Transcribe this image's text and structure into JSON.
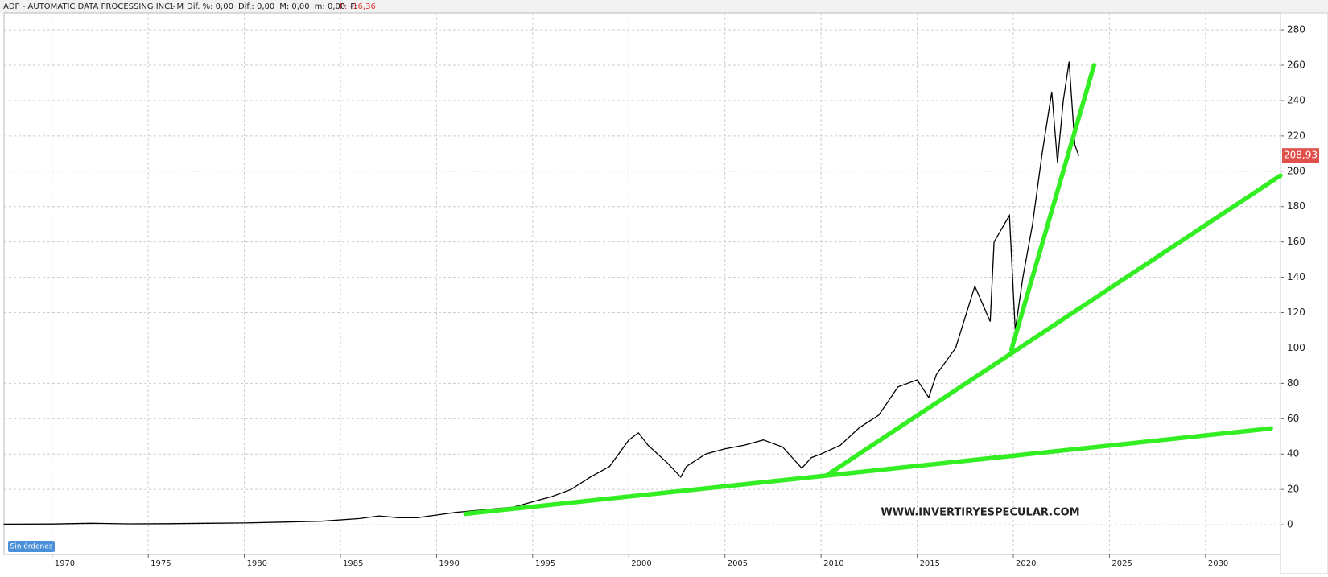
{
  "chart_data": {
    "type": "line",
    "header": {
      "title": "ADP - AUTOMATIC DATA PROCESSING INC -",
      "interval": "1 M",
      "stats": [
        "Dif. %: 0,00",
        "Dif.: 0,00",
        "M: 0,00",
        "m: 0,00",
        "F:"
      ],
      "change": "P: -16,36"
    },
    "watermark": "WWW.INVERTIRYESPECULAR.COM",
    "button": "Sin órdenes",
    "xlim": [
      1967.5,
      2033.9
    ],
    "ylim": [
      -16.8,
      289.6
    ],
    "xticks": [
      1970,
      1975,
      1980,
      1985,
      1990,
      1995,
      2000,
      2005,
      2010,
      2015,
      2020,
      2025,
      2030
    ],
    "yticks": [
      0,
      20,
      40,
      60,
      80,
      100,
      120,
      140,
      160,
      180,
      200,
      220,
      240,
      260,
      280
    ],
    "grid": true,
    "price_tag": {
      "value": 208.93,
      "label": "208,93",
      "color": "#e0504a"
    },
    "series": [
      {
        "color": "#000000",
        "width": 1.3,
        "x": [
          1967.5,
          1970,
          1972,
          1974,
          1976,
          1978,
          1980,
          1982,
          1984,
          1986,
          1987,
          1988,
          1989,
          1990,
          1991,
          1992,
          1993,
          1994,
          1995,
          1996,
          1997,
          1998,
          1999,
          2000,
          2000.5,
          2001,
          2002,
          2002.7,
          2003,
          2004,
          2005,
          2006,
          2007,
          2008,
          2009,
          2009.5,
          2010,
          2011,
          2012,
          2013,
          2014,
          2015,
          2015.6,
          2016,
          2017,
          2018,
          2018.8,
          2019,
          2019.8,
          2020.1,
          2020.5,
          2021,
          2021.5,
          2022,
          2022.3,
          2022.6,
          2022.9,
          2023.2,
          2023.4
        ],
        "values": [
          0.3,
          0.4,
          0.8,
          0.5,
          0.6,
          0.8,
          1,
          1.5,
          2,
          3.5,
          5,
          4,
          4,
          5.5,
          7,
          8,
          9,
          10,
          13,
          16,
          20,
          27,
          33,
          48,
          52,
          45,
          35,
          27,
          33,
          40,
          43,
          45,
          48,
          44,
          32,
          38,
          40,
          45,
          55,
          62,
          78,
          82,
          72,
          85,
          100,
          135,
          115,
          160,
          175,
          110,
          140,
          170,
          210,
          245,
          205,
          240,
          262,
          215,
          208.93
        ]
      },
      {
        "color": "#33ee22",
        "width": 5.5,
        "x": [
          1991.5,
          2033.4
        ],
        "values": [
          6.2,
          54.5
        ]
      },
      {
        "color": "#33ee22",
        "width": 5.5,
        "x": [
          2010.3,
          2033.9
        ],
        "values": [
          28,
          197.6
        ]
      },
      {
        "color": "#33ee22",
        "width": 5.5,
        "x": [
          2019.9,
          2024.2
        ],
        "values": [
          99,
          260
        ]
      }
    ]
  }
}
